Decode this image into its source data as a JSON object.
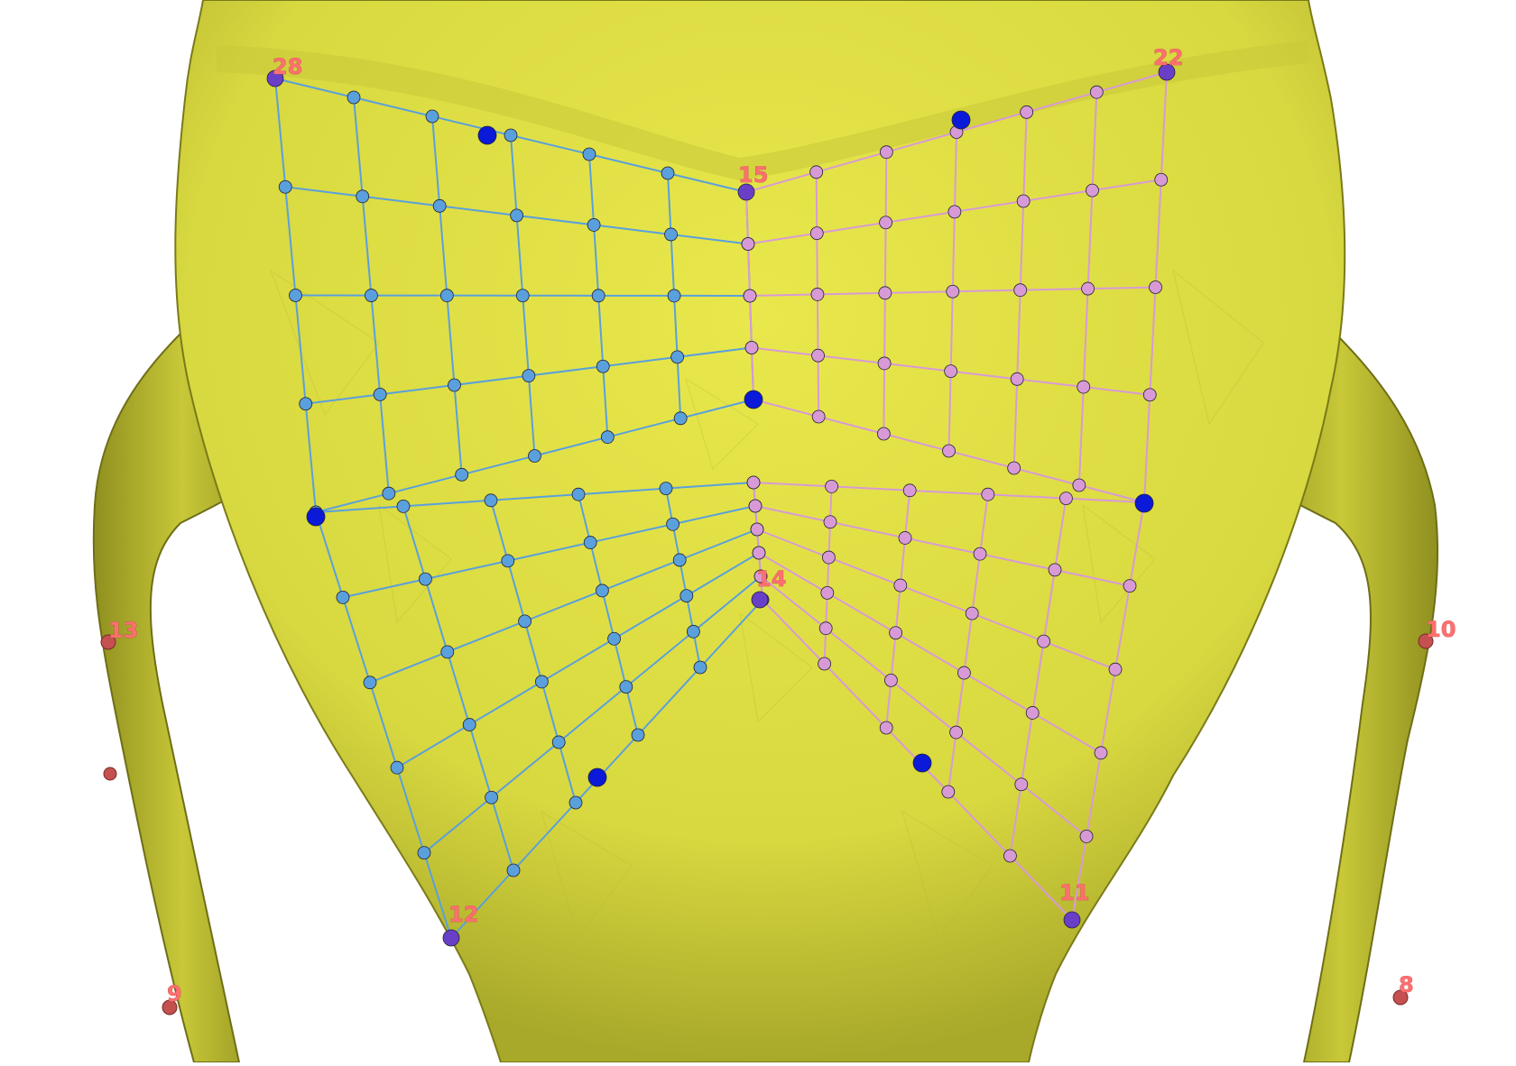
{
  "viewer": {
    "background": "#ffffff",
    "mesh_color": "#dede4a",
    "mesh_shadow": "#8a8a1e",
    "grid_colors": {
      "left_patch": "#5aa0dc",
      "right_patch": "#d89ad6",
      "anchor_node": "#0a1ad8",
      "corner_landmark": "#6a3fc8",
      "surface_landmark": "#c45050"
    }
  },
  "landmarks": {
    "lm_28": "28",
    "lm_22": "22",
    "lm_15": "15",
    "lm_14": "14",
    "lm_13": "13",
    "lm_12": "12",
    "lm_11": "11",
    "lm_10": "10",
    "lm_9": "9",
    "lm_8": "8"
  }
}
